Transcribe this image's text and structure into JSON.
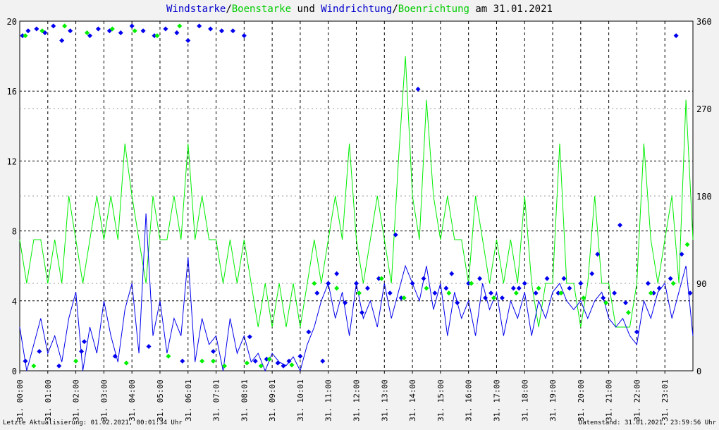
{
  "title": {
    "parts": [
      {
        "text": "Windstarke",
        "color": "#0000cc"
      },
      {
        "text": "/",
        "color": "#000000"
      },
      {
        "text": "Boenstarke",
        "color": "#00cc00"
      },
      {
        "text": " und ",
        "color": "#000000"
      },
      {
        "text": "Windrichtung",
        "color": "#0000cc"
      },
      {
        "text": "/",
        "color": "#000000"
      },
      {
        "text": "Boenrichtung",
        "color": "#00cc00"
      },
      {
        "text": " am 31.01.2021",
        "color": "#000000"
      }
    ]
  },
  "footer": {
    "left": "Letzte Aktualisierung: 01.02.2021, 00:01:34 Uhr",
    "right": "Datenstand: 31.01.2021, 23:59:56 Uhr"
  },
  "colors": {
    "background": "#f2f2f2",
    "plot_background": "#ffffff",
    "wind": "#0000ee",
    "gust": "#00ee00",
    "grid": "#000000"
  },
  "chart_data": {
    "type": "line",
    "x_unit": "hour of day",
    "xlim": [
      0,
      24
    ],
    "x_ticks": [
      {
        "x": 0,
        "label": "31. 00:00"
      },
      {
        "x": 1,
        "label": "31. 01:00"
      },
      {
        "x": 2,
        "label": "31. 02:00"
      },
      {
        "x": 3,
        "label": "31. 03:00"
      },
      {
        "x": 4,
        "label": "31. 04:00"
      },
      {
        "x": 5,
        "label": "31. 05:00"
      },
      {
        "x": 6,
        "label": "31. 06:01"
      },
      {
        "x": 7,
        "label": "31. 07:01"
      },
      {
        "x": 8,
        "label": "31. 08:01"
      },
      {
        "x": 9,
        "label": "31. 09:01"
      },
      {
        "x": 10,
        "label": "31. 10:01"
      },
      {
        "x": 11,
        "label": "31. 11:00"
      },
      {
        "x": 12,
        "label": "31. 12:00"
      },
      {
        "x": 13,
        "label": "31. 13:00"
      },
      {
        "x": 14,
        "label": "31. 14:00"
      },
      {
        "x": 15,
        "label": "31. 15:00"
      },
      {
        "x": 16,
        "label": "31. 16:00"
      },
      {
        "x": 17,
        "label": "31. 17:00"
      },
      {
        "x": 18,
        "label": "31. 18:00"
      },
      {
        "x": 19,
        "label": "31. 19:00"
      },
      {
        "x": 20,
        "label": "31. 20:00"
      },
      {
        "x": 21,
        "label": "31. 21:00"
      },
      {
        "x": 22,
        "label": "31. 22:00"
      },
      {
        "x": 23,
        "label": "31. 23:01"
      }
    ],
    "y_left": {
      "lim": [
        0,
        20
      ],
      "ticks": [
        0,
        4,
        8,
        12,
        16,
        20
      ]
    },
    "y_right": {
      "lim": [
        0,
        360
      ],
      "ticks": [
        0,
        90,
        180,
        270,
        360
      ]
    },
    "grid": true,
    "series": [
      {
        "name": "Boenstarke",
        "type": "line",
        "axis": "left",
        "color": "#00ee00",
        "x": [
          0,
          0.25,
          0.5,
          0.75,
          1,
          1.25,
          1.5,
          1.75,
          2,
          2.25,
          2.5,
          2.75,
          3,
          3.25,
          3.5,
          3.75,
          4,
          4.25,
          4.5,
          4.75,
          5,
          5.25,
          5.5,
          5.75,
          6,
          6.25,
          6.5,
          6.75,
          7,
          7.25,
          7.5,
          7.75,
          8,
          8.25,
          8.5,
          8.75,
          9,
          9.25,
          9.5,
          9.75,
          10,
          10.25,
          10.5,
          10.75,
          11,
          11.25,
          11.5,
          11.75,
          12,
          12.25,
          12.5,
          12.75,
          13,
          13.25,
          13.5,
          13.75,
          14,
          14.25,
          14.5,
          14.75,
          15,
          15.25,
          15.5,
          15.75,
          16,
          16.25,
          16.5,
          16.75,
          17,
          17.25,
          17.5,
          17.75,
          18,
          18.25,
          18.5,
          18.75,
          19,
          19.25,
          19.5,
          19.75,
          20,
          20.25,
          20.5,
          20.75,
          21,
          21.25,
          21.5,
          21.75,
          22,
          22.25,
          22.5,
          22.75,
          23,
          23.25,
          23.5,
          23.75,
          24
        ],
        "y": [
          7.5,
          5,
          7.5,
          7.5,
          5,
          7.5,
          5,
          10,
          7.5,
          5,
          7.5,
          10,
          7.5,
          10,
          7.5,
          13,
          10,
          7.5,
          5,
          10,
          7.5,
          7.5,
          10,
          7.5,
          13,
          7.5,
          10,
          7.5,
          7.5,
          5,
          7.5,
          5,
          7.5,
          5,
          2.5,
          5,
          2.5,
          5,
          2.5,
          5,
          2.5,
          5,
          7.5,
          5,
          7.5,
          10,
          7.5,
          13,
          7.5,
          5,
          7.5,
          10,
          7.5,
          5,
          12,
          18,
          10,
          7.5,
          15.5,
          10,
          7.5,
          10,
          7.5,
          7.5,
          5,
          10,
          7.5,
          5,
          7.5,
          5,
          7.5,
          5,
          10,
          5,
          2.5,
          5,
          5,
          13,
          5,
          5,
          2.5,
          5,
          10,
          5,
          5,
          2.5,
          2.5,
          2.5,
          5,
          13,
          7.5,
          5,
          7.5,
          10,
          5,
          15.5,
          7.5
        ]
      },
      {
        "name": "Windstarke",
        "type": "line",
        "axis": "left",
        "color": "#0000ee",
        "x": [
          0,
          0.25,
          0.5,
          0.75,
          1,
          1.25,
          1.5,
          1.75,
          2,
          2.25,
          2.5,
          2.75,
          3,
          3.25,
          3.5,
          3.75,
          4,
          4.25,
          4.5,
          4.75,
          5,
          5.25,
          5.5,
          5.75,
          6,
          6.25,
          6.5,
          6.75,
          7,
          7.25,
          7.5,
          7.75,
          8,
          8.25,
          8.5,
          8.75,
          9,
          9.25,
          9.5,
          9.75,
          10,
          10.25,
          10.5,
          10.75,
          11,
          11.25,
          11.5,
          11.75,
          12,
          12.25,
          12.5,
          12.75,
          13,
          13.25,
          13.5,
          13.75,
          14,
          14.25,
          14.5,
          14.75,
          15,
          15.25,
          15.5,
          15.75,
          16,
          16.25,
          16.5,
          16.75,
          17,
          17.25,
          17.5,
          17.75,
          18,
          18.25,
          18.5,
          18.75,
          19,
          19.25,
          19.5,
          19.75,
          20,
          20.25,
          20.5,
          20.75,
          21,
          21.25,
          21.5,
          21.75,
          22,
          22.25,
          22.5,
          22.75,
          23,
          23.25,
          23.5,
          23.75,
          24
        ],
        "y": [
          2.5,
          0,
          1.5,
          3,
          1,
          2,
          0.5,
          3,
          4.5,
          0,
          2.5,
          1,
          4,
          2,
          0.5,
          3.5,
          5,
          1,
          9,
          2,
          4,
          1,
          3,
          2,
          6.5,
          0.5,
          3,
          1.5,
          2,
          0,
          3,
          1,
          2,
          0.5,
          1,
          0,
          1,
          0.5,
          0.3,
          0.8,
          0,
          1.5,
          2.5,
          4,
          5,
          3,
          4.5,
          2,
          5,
          3,
          4,
          2.5,
          5,
          3,
          4.5,
          6,
          5,
          4,
          6,
          3.5,
          5,
          2,
          4.5,
          3,
          4,
          2,
          5,
          3.5,
          4.5,
          2,
          4,
          3,
          4.5,
          2,
          4,
          3,
          4.5,
          5,
          4,
          3.5,
          4,
          3,
          4,
          4.5,
          3,
          2.5,
          3,
          2,
          1.5,
          4,
          3,
          4.5,
          5,
          3,
          4.5,
          6,
          2
        ]
      },
      {
        "name": "Windrichtung",
        "type": "scatter",
        "axis": "right",
        "color": "#0000ee",
        "x": [
          0.1,
          0.3,
          0.6,
          0.9,
          1.2,
          1.5,
          1.8,
          2.2,
          2.5,
          2.8,
          3.2,
          3.6,
          4,
          4.4,
          4.8,
          5.2,
          5.6,
          6,
          6.4,
          6.8,
          7.2,
          7.6,
          8,
          8.4,
          8.8,
          9.2,
          9.6,
          10,
          10.3,
          10.6,
          11,
          11.3,
          11.6,
          12,
          12.4,
          12.8,
          13.2,
          13.6,
          14,
          14.4,
          14.8,
          15.2,
          15.6,
          16,
          16.4,
          16.8,
          17.2,
          17.6,
          18,
          18.4,
          18.8,
          19.2,
          19.6,
          20,
          20.4,
          20.8,
          21.2,
          21.6,
          22,
          22.4,
          22.8,
          23.2,
          23.6,
          23.9,
          0.2,
          0.7,
          1.4,
          2.3,
          3.4,
          4.6,
          5.8,
          6.9,
          8.2,
          9.4,
          10.8,
          12.2,
          13.4,
          14.2,
          15.4,
          16.6,
          17.8,
          19.4,
          20.6,
          21.4,
          22.6,
          23.4
        ],
        "y": [
          345,
          350,
          352,
          348,
          355,
          340,
          350,
          20,
          345,
          352,
          350,
          348,
          355,
          350,
          345,
          352,
          348,
          340,
          355,
          352,
          350,
          350,
          345,
          10,
          12,
          8,
          10,
          15,
          40,
          80,
          90,
          100,
          70,
          90,
          85,
          95,
          80,
          75,
          90,
          95,
          80,
          85,
          70,
          90,
          95,
          80,
          75,
          85,
          90,
          80,
          95,
          80,
          85,
          90,
          100,
          75,
          80,
          70,
          40,
          90,
          85,
          95,
          120,
          80,
          10,
          20,
          5,
          30,
          15,
          25,
          10,
          20,
          35,
          5,
          10,
          60,
          140,
          290,
          100,
          75,
          85,
          95,
          120,
          150,
          80,
          345
        ]
      },
      {
        "name": "Boenrichtung",
        "type": "scatter",
        "axis": "right",
        "color": "#00ee00",
        "x": [
          0.2,
          0.8,
          1.6,
          2.4,
          3.3,
          4.1,
          4.9,
          5.7,
          6.5,
          7.3,
          8.1,
          8.9,
          9.7,
          10.5,
          11.3,
          12.1,
          12.9,
          13.7,
          14.5,
          15.3,
          16.1,
          16.9,
          17.7,
          18.5,
          19.3,
          20.1,
          20.9,
          21.7,
          22.5,
          23.3,
          23.8,
          0.5,
          2,
          3.8,
          5.3,
          6.9,
          8.6
        ],
        "y": [
          345,
          350,
          355,
          348,
          352,
          350,
          345,
          355,
          10,
          5,
          8,
          12,
          6,
          90,
          85,
          80,
          95,
          75,
          85,
          80,
          90,
          75,
          80,
          85,
          80,
          75,
          70,
          60,
          80,
          90,
          130,
          5,
          10,
          8,
          15,
          10,
          5
        ]
      }
    ]
  }
}
